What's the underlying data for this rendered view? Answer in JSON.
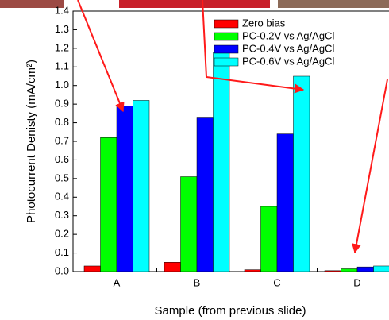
{
  "chart_data": {
    "type": "bar",
    "y_label": "Photocurrent Denisty (mA/cm²)",
    "x_label": "Sample (from previous slide)",
    "categories": [
      "A",
      "B",
      "C",
      "D"
    ],
    "series": [
      {
        "name": "Zero bias",
        "color": "#ff0000",
        "values": [
          0.03,
          0.05,
          0.01,
          0.005
        ]
      },
      {
        "name": "PC-0.2V vs Ag/AgCl",
        "color": "#00ff00",
        "values": [
          0.72,
          0.51,
          0.35,
          0.015
        ]
      },
      {
        "name": "PC-0.4V vs Ag/AgCl",
        "color": "#0000ff",
        "values": [
          0.89,
          0.83,
          0.74,
          0.025
        ]
      },
      {
        "name": "PC-0.6V vs Ag/AgCl",
        "color": "#00ffff",
        "values": [
          0.92,
          1.18,
          1.05,
          0.03
        ]
      }
    ],
    "ylim": [
      0,
      1.4
    ],
    "yticks": [
      {
        "value": 0,
        "label": "0.0"
      },
      0.1,
      0.2,
      0.3,
      0.4,
      0.5,
      0.6,
      0.7,
      0.8,
      0.9,
      {
        "value": 1,
        "label": "1.0"
      },
      1.1,
      1.2,
      1.3,
      1.4
    ],
    "legend": "top-right"
  }
}
